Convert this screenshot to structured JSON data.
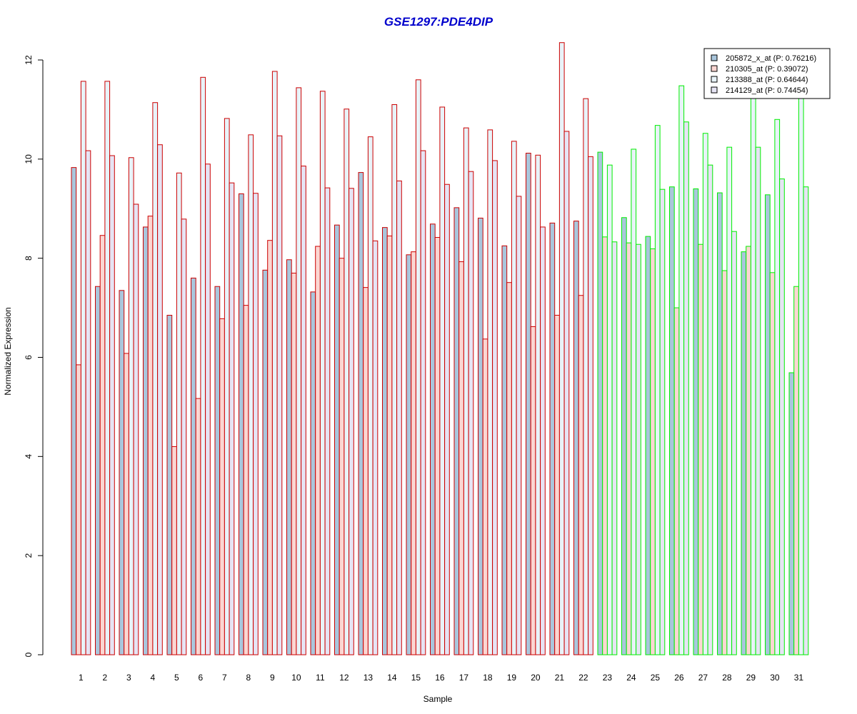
{
  "chart_data": {
    "type": "bar",
    "title": "GSE1297:PDE4DIP",
    "xlabel": "Sample",
    "ylabel": "Normalized Expression",
    "ylim": [
      0,
      12
    ],
    "yticks": [
      0,
      2,
      4,
      6,
      8,
      10,
      12
    ],
    "categories": [
      "1",
      "2",
      "3",
      "4",
      "5",
      "6",
      "7",
      "8",
      "9",
      "10",
      "11",
      "12",
      "13",
      "14",
      "15",
      "16",
      "17",
      "18",
      "19",
      "20",
      "21",
      "22",
      "23",
      "24",
      "25",
      "26",
      "27",
      "28",
      "29",
      "30",
      "31"
    ],
    "group_border_colors": [
      "#cc0000",
      "#cc0000",
      "#cc0000",
      "#cc0000",
      "#cc0000",
      "#cc0000",
      "#cc0000",
      "#cc0000",
      "#cc0000",
      "#cc0000",
      "#cc0000",
      "#cc0000",
      "#cc0000",
      "#cc0000",
      "#cc0000",
      "#cc0000",
      "#cc0000",
      "#cc0000",
      "#cc0000",
      "#cc0000",
      "#cc0000",
      "#cc0000",
      "#00ee00",
      "#00ee00",
      "#00ee00",
      "#00ee00",
      "#00ee00",
      "#00ee00",
      "#00ee00",
      "#00ee00",
      "#00ee00"
    ],
    "series": [
      {
        "name": "205872_x_at (P: 0.76216)",
        "fill": "#a9c6dc",
        "values": [
          9.83,
          7.43,
          7.35,
          8.63,
          6.85,
          7.6,
          7.43,
          9.3,
          7.76,
          7.97,
          7.32,
          8.67,
          9.73,
          8.62,
          8.07,
          8.69,
          9.02,
          8.81,
          8.25,
          10.12,
          8.71,
          8.75,
          10.14,
          8.82,
          8.44,
          9.44,
          9.4,
          9.32,
          8.13,
          9.28,
          5.69
        ]
      },
      {
        "name": "210305_at (P: 0.39072)",
        "fill": "#fbd6d2",
        "values": [
          5.85,
          8.46,
          6.08,
          8.85,
          4.2,
          5.17,
          6.78,
          7.05,
          8.36,
          7.7,
          8.24,
          8.0,
          7.41,
          8.45,
          8.13,
          8.42,
          7.93,
          6.37,
          7.51,
          6.62,
          6.85,
          7.25,
          8.43,
          8.31,
          8.19,
          7.0,
          8.28,
          7.75,
          8.24,
          7.71,
          7.43
        ]
      },
      {
        "name": "213388_at (P: 0.64644)",
        "fill": "#e8f3f9",
        "values": [
          11.57,
          11.57,
          10.03,
          11.14,
          9.72,
          11.65,
          10.82,
          10.49,
          11.77,
          11.44,
          11.37,
          11.01,
          10.45,
          11.1,
          11.6,
          11.05,
          10.63,
          10.59,
          10.36,
          10.08,
          12.35,
          11.22,
          9.88,
          10.2,
          10.68,
          11.48,
          10.52,
          10.24,
          11.25,
          10.8,
          11.3
        ]
      },
      {
        "name": "214129_at (P: 0.74454)",
        "fill": "#e6e4f4",
        "values": [
          10.17,
          10.07,
          9.09,
          10.29,
          8.79,
          9.9,
          9.52,
          9.31,
          10.47,
          9.86,
          9.42,
          9.41,
          8.35,
          9.56,
          10.17,
          9.49,
          9.75,
          9.97,
          9.25,
          8.63,
          10.56,
          10.05,
          8.33,
          8.28,
          9.39,
          10.75,
          9.88,
          8.54,
          10.24,
          9.6,
          9.44
        ]
      }
    ],
    "legend_position": "top-right",
    "grid": false
  }
}
